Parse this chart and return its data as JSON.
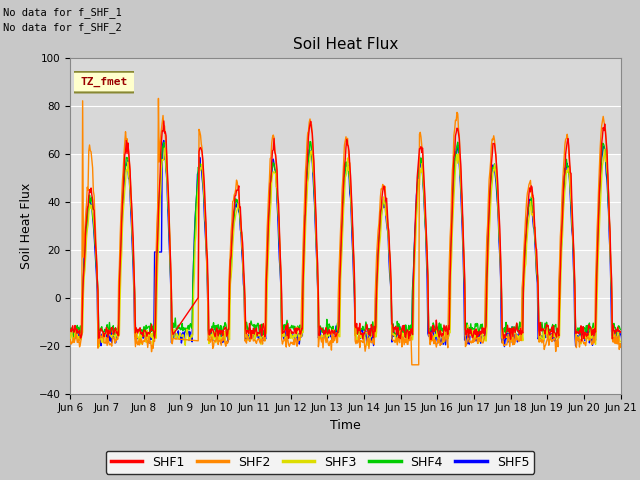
{
  "title": "Soil Heat Flux",
  "ylabel": "Soil Heat Flux",
  "xlabel": "Time",
  "no_data_line1": "No data for f_SHF_1",
  "no_data_line2": "No data for f_SHF_2",
  "tz_label": "TZ_fmet",
  "ylim": [
    -40,
    100
  ],
  "yticks": [
    -40,
    -20,
    0,
    20,
    40,
    60,
    80,
    100
  ],
  "n_days": 15,
  "xtick_labels": [
    "Jun 6",
    "Jun 7",
    "Jun 8",
    "Jun 9",
    "Jun 10",
    "Jun 11",
    "Jun 12",
    "Jun 13",
    "Jun 14",
    "Jun 15",
    "Jun 16",
    "Jun 17",
    "Jun 18",
    "Jun 19",
    "Jun 20",
    "Jun 21"
  ],
  "series_colors": {
    "SHF1": "#ff0000",
    "SHF2": "#ff8800",
    "SHF3": "#dddd00",
    "SHF4": "#00cc00",
    "SHF5": "#0000ff"
  },
  "fig_facecolor": "#c8c8c8",
  "ax_facecolor": "#e8e8e8",
  "shaded_top_color": "#d8d8d8",
  "grid_color": "#ffffff",
  "title_fontsize": 11,
  "axis_label_fontsize": 9,
  "tick_fontsize": 7.5,
  "legend_fontsize": 9
}
